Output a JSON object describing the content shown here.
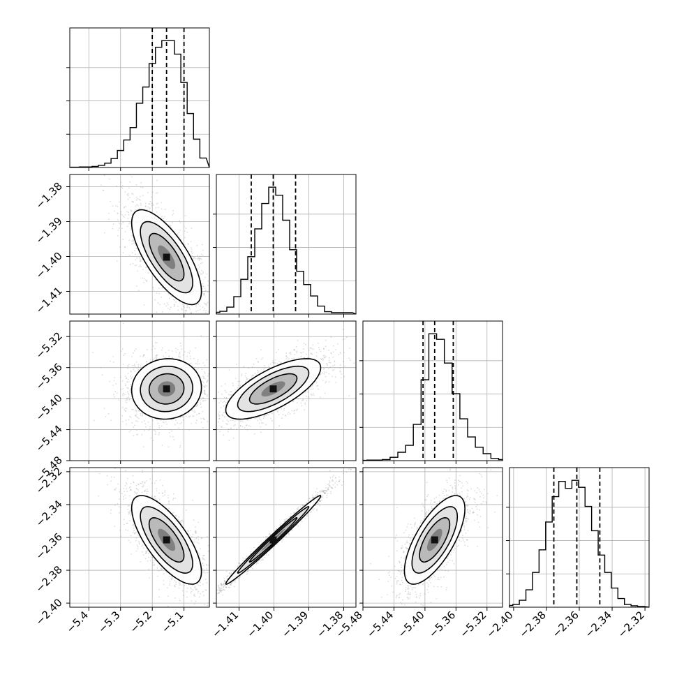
{
  "chart_data": {
    "type": "corner",
    "grid": true,
    "colors": {
      "line": "#000000",
      "grid": "#b0b0b0",
      "scatter": "#9a9a9a"
    },
    "params": [
      {
        "range": [
          -5.46,
          -5.02
        ],
        "ticks": [
          -5.4,
          -5.3,
          -5.2,
          -5.1
        ],
        "tick_labels": [
          "−5.4",
          "−5.3",
          "−5.2",
          "−5.1"
        ],
        "quantiles": [
          -5.2,
          -5.155,
          -5.1
        ],
        "hist": [
          {
            "x": -5.46,
            "y": 1
          },
          {
            "x": -5.44,
            "y": 1
          },
          {
            "x": -5.42,
            "y": 2
          },
          {
            "x": -5.4,
            "y": 2
          },
          {
            "x": -5.38,
            "y": 4
          },
          {
            "x": -5.36,
            "y": 8
          },
          {
            "x": -5.34,
            "y": 16
          },
          {
            "x": -5.32,
            "y": 33
          },
          {
            "x": -5.3,
            "y": 63
          },
          {
            "x": -5.28,
            "y": 102
          },
          {
            "x": -5.26,
            "y": 148
          },
          {
            "x": -5.24,
            "y": 238
          },
          {
            "x": -5.22,
            "y": 298
          },
          {
            "x": -5.2,
            "y": 385
          },
          {
            "x": -5.18,
            "y": 445
          },
          {
            "x": -5.16,
            "y": 470
          },
          {
            "x": -5.14,
            "y": 470
          },
          {
            "x": -5.12,
            "y": 420
          },
          {
            "x": -5.1,
            "y": 315
          },
          {
            "x": -5.08,
            "y": 200
          },
          {
            "x": -5.06,
            "y": 105
          },
          {
            "x": -5.04,
            "y": 35
          }
        ]
      },
      {
        "range": [
          -1.4165,
          -1.3765
        ],
        "ticks": [
          -1.41,
          -1.4,
          -1.39,
          -1.38
        ],
        "tick_labels": [
          "−1.41",
          "−1.40",
          "−1.39",
          "−1.38"
        ],
        "quantiles": [
          -1.4065,
          -1.4002,
          -1.3938
        ],
        "hist": [
          {
            "x": -1.4165,
            "y": 5
          },
          {
            "x": -1.4145,
            "y": 8
          },
          {
            "x": -1.4125,
            "y": 20
          },
          {
            "x": -1.4105,
            "y": 50
          },
          {
            "x": -1.4085,
            "y": 100
          },
          {
            "x": -1.4065,
            "y": 165
          },
          {
            "x": -1.4045,
            "y": 245
          },
          {
            "x": -1.4025,
            "y": 318
          },
          {
            "x": -1.4005,
            "y": 365
          },
          {
            "x": -1.3985,
            "y": 342
          },
          {
            "x": -1.3965,
            "y": 270
          },
          {
            "x": -1.3945,
            "y": 185
          },
          {
            "x": -1.3925,
            "y": 123
          },
          {
            "x": -1.3905,
            "y": 85
          },
          {
            "x": -1.3885,
            "y": 52
          },
          {
            "x": -1.3865,
            "y": 23
          },
          {
            "x": -1.3845,
            "y": 7
          },
          {
            "x": -1.3825,
            "y": 4
          },
          {
            "x": -1.3805,
            "y": 4
          },
          {
            "x": -1.3785,
            "y": 4
          }
        ]
      },
      {
        "range": [
          -5.48,
          -5.3
        ],
        "ticks": [
          -5.48,
          -5.44,
          -5.4,
          -5.36,
          -5.32
        ],
        "tick_labels": [
          "−5.48",
          "−5.44",
          "−5.40",
          "−5.36",
          "−5.32"
        ],
        "quantiles": [
          -5.4025,
          -5.3875,
          -5.3635
        ],
        "hist": [
          {
            "x": -5.48,
            "y": 1
          },
          {
            "x": -5.47,
            "y": 2
          },
          {
            "x": -5.46,
            "y": 2
          },
          {
            "x": -5.45,
            "y": 4
          },
          {
            "x": -5.44,
            "y": 12
          },
          {
            "x": -5.43,
            "y": 30
          },
          {
            "x": -5.42,
            "y": 55
          },
          {
            "x": -5.41,
            "y": 130
          },
          {
            "x": -5.4,
            "y": 290
          },
          {
            "x": -5.39,
            "y": 455
          },
          {
            "x": -5.38,
            "y": 435
          },
          {
            "x": -5.37,
            "y": 350
          },
          {
            "x": -5.36,
            "y": 240
          },
          {
            "x": -5.35,
            "y": 150
          },
          {
            "x": -5.34,
            "y": 85
          },
          {
            "x": -5.33,
            "y": 48
          },
          {
            "x": -5.32,
            "y": 25
          },
          {
            "x": -5.31,
            "y": 8
          },
          {
            "x": -5.3,
            "y": 4
          }
        ]
      },
      {
        "range": [
          -2.4025,
          -2.3175
        ],
        "ticks": [
          -2.4,
          -2.38,
          -2.36,
          -2.34,
          -2.32
        ],
        "tick_labels": [
          "−2.40",
          "−2.38",
          "−2.36",
          "−2.34",
          "−2.32"
        ],
        "quantiles": [
          -2.3755,
          -2.3615,
          -2.3475
        ],
        "hist": [
          {
            "x": -2.4025,
            "y": 5
          },
          {
            "x": -2.3985,
            "y": 8
          },
          {
            "x": -2.3945,
            "y": 20
          },
          {
            "x": -2.3905,
            "y": 50
          },
          {
            "x": -2.3865,
            "y": 100
          },
          {
            "x": -2.3825,
            "y": 165
          },
          {
            "x": -2.3785,
            "y": 245
          },
          {
            "x": -2.3745,
            "y": 318
          },
          {
            "x": -2.3705,
            "y": 362
          },
          {
            "x": -2.3665,
            "y": 342
          },
          {
            "x": -2.3625,
            "y": 365
          },
          {
            "x": -2.3585,
            "y": 345
          },
          {
            "x": -2.3545,
            "y": 290
          },
          {
            "x": -2.3505,
            "y": 220
          },
          {
            "x": -2.3465,
            "y": 150
          },
          {
            "x": -2.3425,
            "y": 100
          },
          {
            "x": -2.3385,
            "y": 55
          },
          {
            "x": -2.3345,
            "y": 25
          },
          {
            "x": -2.3305,
            "y": 8
          },
          {
            "x": -2.3265,
            "y": 4
          },
          {
            "x": -2.3225,
            "y": 2
          }
        ]
      }
    ],
    "pairs": [
      {
        "row": 1,
        "col": 0,
        "mean": [
          -5.155,
          -1.4002
        ],
        "sd": [
          0.055,
          0.0068
        ],
        "rho": -0.72
      },
      {
        "row": 2,
        "col": 0,
        "mean": [
          -5.155,
          -5.3875
        ],
        "sd": [
          0.055,
          0.0195
        ],
        "rho": 0.05
      },
      {
        "row": 2,
        "col": 1,
        "mean": [
          -1.4002,
          -5.3875
        ],
        "sd": [
          0.0068,
          0.0195
        ],
        "rho": 0.7
      },
      {
        "row": 3,
        "col": 0,
        "mean": [
          -5.155,
          -2.3615
        ],
        "sd": [
          0.055,
          0.0135
        ],
        "rho": -0.72
      },
      {
        "row": 3,
        "col": 1,
        "mean": [
          -1.4002,
          -2.3615
        ],
        "sd": [
          0.0068,
          0.0135
        ],
        "rho": 0.99
      },
      {
        "row": 3,
        "col": 2,
        "mean": [
          -5.3875,
          -2.3615
        ],
        "sd": [
          0.0195,
          0.0135
        ],
        "rho": 0.7
      }
    ]
  }
}
